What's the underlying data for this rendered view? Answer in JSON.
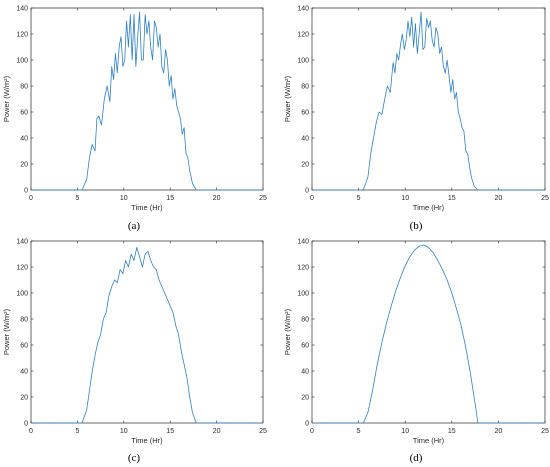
{
  "chart_data": [
    {
      "type": "line",
      "panel_label": "(a)",
      "xlabel": "Time (Hr)",
      "ylabel": "Power (W/m²)",
      "xlim": [
        0,
        25
      ],
      "ylim": [
        0,
        140
      ],
      "xticks": [
        0,
        5,
        10,
        15,
        20,
        25
      ],
      "yticks": [
        0,
        20,
        40,
        60,
        80,
        100,
        120,
        140
      ],
      "grid": false,
      "series": [
        {
          "color": "#2e7fc2",
          "x": [
            0,
            5.5,
            6.0,
            6.3,
            6.6,
            6.9,
            7.1,
            7.3,
            7.6,
            7.9,
            8.2,
            8.5,
            8.7,
            8.9,
            9.1,
            9.3,
            9.5,
            9.7,
            9.9,
            10.1,
            10.3,
            10.5,
            10.7,
            10.9,
            11.1,
            11.3,
            11.5,
            11.7,
            11.9,
            12.1,
            12.3,
            12.5,
            12.7,
            12.9,
            13.1,
            13.3,
            13.5,
            13.7,
            13.9,
            14.1,
            14.3,
            14.5,
            14.7,
            14.9,
            15.1,
            15.3,
            15.5,
            15.7,
            15.9,
            16.1,
            16.3,
            16.5,
            16.7,
            16.9,
            17.1,
            17.4,
            17.8,
            25
          ],
          "y": [
            0,
            0,
            8,
            25,
            35,
            30,
            55,
            57,
            50,
            70,
            80,
            68,
            95,
            85,
            105,
            90,
            110,
            118,
            95,
            100,
            130,
            110,
            135,
            100,
            135,
            95,
            118,
            137,
            100,
            100,
            135,
            120,
            130,
            110,
            100,
            130,
            125,
            110,
            120,
            95,
            90,
            108,
            100,
            80,
            88,
            70,
            78,
            65,
            60,
            55,
            43,
            48,
            28,
            25,
            15,
            5,
            0,
            0
          ]
        }
      ]
    },
    {
      "type": "line",
      "panel_label": "(b)",
      "xlabel": "Time (Hr)",
      "ylabel": "Power (W/m²)",
      "xlim": [
        0,
        25
      ],
      "ylim": [
        0,
        140
      ],
      "xticks": [
        0,
        5,
        10,
        15,
        20,
        25
      ],
      "yticks": [
        0,
        20,
        40,
        60,
        80,
        100,
        120,
        140
      ],
      "grid": false,
      "series": [
        {
          "color": "#2e7fc2",
          "x": [
            0,
            5.5,
            6.0,
            6.3,
            6.6,
            6.9,
            7.2,
            7.5,
            7.8,
            8.1,
            8.4,
            8.7,
            8.9,
            9.1,
            9.3,
            9.5,
            9.7,
            9.9,
            10.1,
            10.3,
            10.5,
            10.7,
            10.9,
            11.1,
            11.3,
            11.5,
            11.7,
            11.9,
            12.1,
            12.3,
            12.5,
            12.7,
            12.9,
            13.1,
            13.3,
            13.5,
            13.7,
            13.9,
            14.1,
            14.3,
            14.5,
            14.7,
            14.9,
            15.1,
            15.3,
            15.5,
            15.7,
            15.9,
            16.1,
            16.3,
            16.5,
            16.7,
            16.9,
            17.1,
            17.4,
            17.8,
            25
          ],
          "y": [
            0,
            0,
            10,
            28,
            40,
            52,
            60,
            58,
            70,
            80,
            75,
            98,
            90,
            105,
            100,
            112,
            120,
            108,
            115,
            130,
            118,
            133,
            110,
            128,
            105,
            120,
            137,
            108,
            110,
            132,
            125,
            130,
            115,
            110,
            125,
            120,
            105,
            110,
            95,
            90,
            100,
            88,
            75,
            85,
            70,
            75,
            60,
            55,
            48,
            45,
            30,
            28,
            18,
            10,
            3,
            0,
            0
          ]
        }
      ]
    },
    {
      "type": "line",
      "panel_label": "(c)",
      "xlabel": "Time (Hr)",
      "ylabel": "Power (W/m²)",
      "xlim": [
        0,
        25
      ],
      "ylim": [
        0,
        140
      ],
      "xticks": [
        0,
        5,
        10,
        15,
        20,
        25
      ],
      "yticks": [
        0,
        20,
        40,
        60,
        80,
        100,
        120,
        140
      ],
      "grid": false,
      "series": [
        {
          "color": "#2e7fc2",
          "x": [
            0,
            5.5,
            6.0,
            6.3,
            6.6,
            6.9,
            7.2,
            7.5,
            7.8,
            8.1,
            8.4,
            8.7,
            9.0,
            9.3,
            9.6,
            9.9,
            10.2,
            10.5,
            10.8,
            11.1,
            11.4,
            11.7,
            12.0,
            12.3,
            12.6,
            12.9,
            13.2,
            13.5,
            13.8,
            14.1,
            14.4,
            14.7,
            15.0,
            15.3,
            15.6,
            15.9,
            16.2,
            16.5,
            16.8,
            17.1,
            17.4,
            17.8,
            25
          ],
          "y": [
            0,
            0,
            10,
            25,
            40,
            52,
            62,
            68,
            80,
            85,
            98,
            105,
            110,
            108,
            118,
            115,
            125,
            120,
            130,
            125,
            135,
            128,
            120,
            130,
            132,
            125,
            120,
            118,
            110,
            105,
            100,
            95,
            90,
            85,
            75,
            68,
            55,
            45,
            35,
            20,
            8,
            0,
            0
          ]
        }
      ]
    },
    {
      "type": "line",
      "panel_label": "(d)",
      "xlabel": "Time (Hr)",
      "ylabel": "Power (W/m²)",
      "xlim": [
        0,
        25
      ],
      "ylim": [
        0,
        140
      ],
      "xticks": [
        0,
        5,
        10,
        15,
        20,
        25
      ],
      "yticks": [
        0,
        20,
        40,
        60,
        80,
        100,
        120,
        140
      ],
      "grid": false,
      "series": [
        {
          "color": "#2e7fc2",
          "x": [
            0,
            5.5,
            6.0,
            6.5,
            7.0,
            7.5,
            8.0,
            8.5,
            9.0,
            9.5,
            10.0,
            10.5,
            11.0,
            11.5,
            12.0,
            12.5,
            13.0,
            13.5,
            14.0,
            14.5,
            15.0,
            15.5,
            16.0,
            16.5,
            17.0,
            17.5,
            17.8,
            25
          ],
          "y": [
            0,
            0,
            8,
            25,
            45,
            62,
            77,
            90,
            102,
            112,
            121,
            128,
            133,
            136,
            137,
            135,
            131,
            125,
            118,
            110,
            100,
            88,
            75,
            58,
            38,
            15,
            0,
            0
          ]
        }
      ]
    }
  ]
}
